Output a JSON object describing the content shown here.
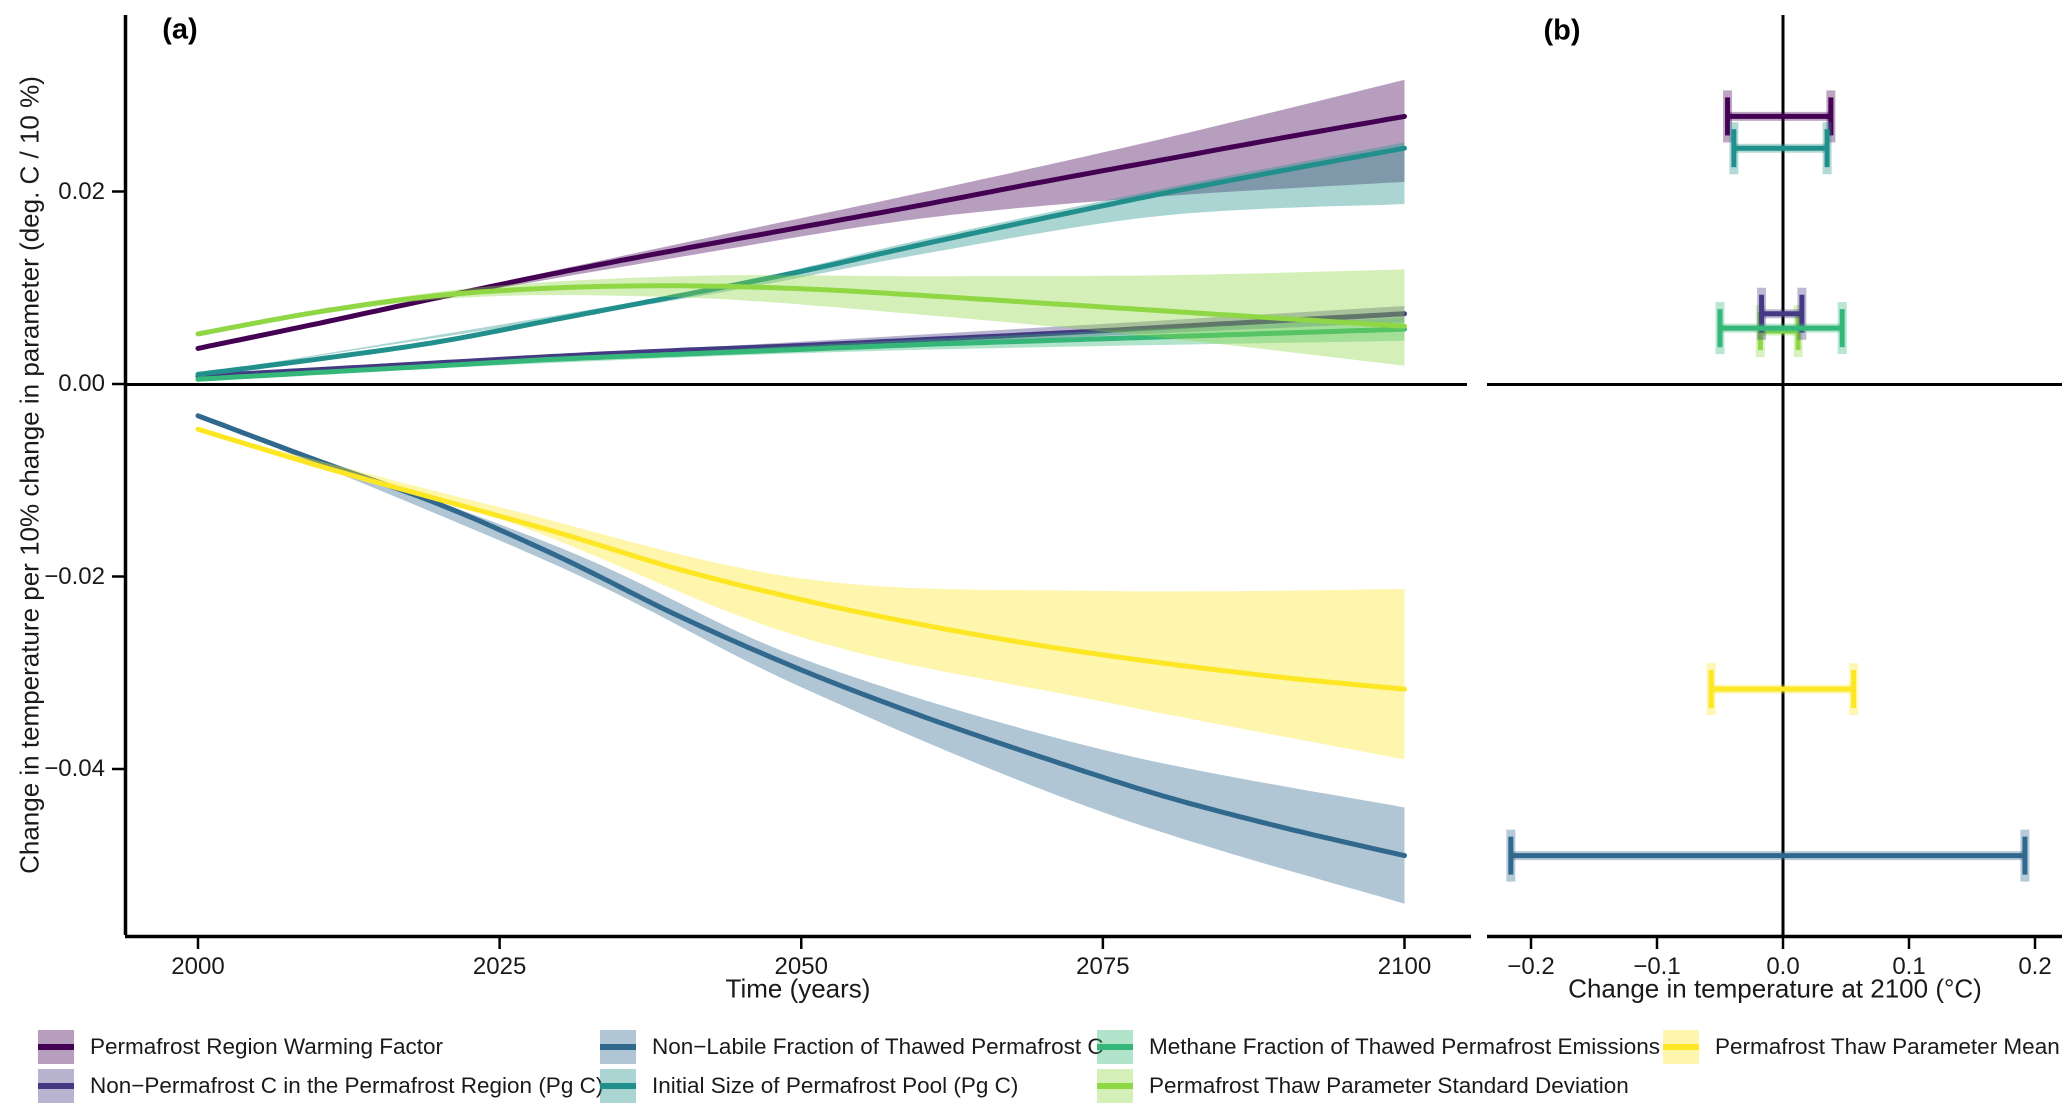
{
  "panel_a": {
    "label": "(a)",
    "x_title": "Time (years)",
    "y_title": "Change in temperature per 10% change in parameter (deg. C / 10 %)",
    "x_ticks": [
      {
        "year": 2000,
        "label": "2000"
      },
      {
        "year": 2025,
        "label": "2025"
      },
      {
        "year": 2050,
        "label": "2050"
      },
      {
        "year": 2075,
        "label": "2075"
      },
      {
        "year": 2100,
        "label": "2100"
      }
    ],
    "y_ticks": [
      {
        "value": 0.02,
        "label": "0.02"
      },
      {
        "value": 0.0,
        "label": "0.00"
      },
      {
        "value": -0.02,
        "label": "−0.02"
      },
      {
        "value": -0.04,
        "label": "−0.04"
      }
    ]
  },
  "panel_b": {
    "label": "(b)",
    "x_title": "Change in temperature at 2100 (°C)",
    "x_ticks": [
      {
        "value": -0.2,
        "label": "−0.2"
      },
      {
        "value": -0.1,
        "label": "−0.1"
      },
      {
        "value": 0.0,
        "label": "0.0"
      },
      {
        "value": 0.1,
        "label": "0.1"
      },
      {
        "value": 0.2,
        "label": "0.2"
      }
    ]
  },
  "legend": {
    "items": [
      {
        "label": "Permafrost Region Warming Factor",
        "color": "#440154",
        "fill_alpha": 0.38
      },
      {
        "label": "Non−Permafrost C in the Permafrost Region (Pg C)",
        "color": "#443A83",
        "fill_alpha": 0.38
      },
      {
        "label": "Non−Labile Fraction of Thawed Permafrost C",
        "color": "#31688E",
        "fill_alpha": 0.38
      },
      {
        "label": "Initial Size of Permafrost Pool (Pg C)",
        "color": "#21908C",
        "fill_alpha": 0.38
      },
      {
        "label": "Methane Fraction of Thawed Permafrost Emissions",
        "color": "#35B779",
        "fill_alpha": 0.38
      },
      {
        "label": "Permafrost Thaw Parameter Standard Deviation",
        "color": "#8FD744",
        "fill_alpha": 0.38
      },
      {
        "label": "Permafrost Thaw Parameter Mean",
        "color": "#FDE725",
        "fill_alpha": 0.38
      }
    ]
  },
  "chart_data": [
    {
      "type": "line",
      "panel": "a",
      "xlabel": "Time (years)",
      "ylabel": "Change in temperature per 10% change in parameter (deg. C / 10 %)",
      "x_range": [
        1994,
        2105
      ],
      "y_range": [
        -0.0573,
        0.0384
      ],
      "x_tick_values": [
        2000,
        2025,
        2050,
        2075,
        2100
      ],
      "y_tick_values": [
        0.02,
        0.0,
        -0.02,
        -0.04
      ],
      "grid": false,
      "series": [
        {
          "name": "Permafrost Region Warming Factor",
          "color": "#440154",
          "x": [
            2000,
            2010,
            2020,
            2030,
            2040,
            2050,
            2060,
            2070,
            2080,
            2090,
            2100
          ],
          "y": [
            0.0037,
            0.0063,
            0.009,
            0.0116,
            0.014,
            0.0163,
            0.0186,
            0.021,
            0.0233,
            0.0256,
            0.0278
          ],
          "ribbon": {
            "x": [
              2000,
              2020,
              2040,
              2060,
              2080,
              2100
            ],
            "lo": [
              0.0037,
              0.0088,
              0.0132,
              0.0172,
              0.0195,
              0.021
            ],
            "hi": [
              0.0037,
              0.0092,
              0.0146,
              0.0199,
              0.0255,
              0.0316
            ]
          }
        },
        {
          "name": "Non−Permafrost C in the Permafrost Region (Pg C)",
          "color": "#443A83",
          "x": [
            2000,
            2010,
            2020,
            2030,
            2040,
            2050,
            2060,
            2070,
            2080,
            2090,
            2100
          ],
          "y": [
            0.0008,
            0.0015,
            0.0022,
            0.0029,
            0.0035,
            0.004,
            0.0046,
            0.0052,
            0.0059,
            0.0066,
            0.0073
          ],
          "ribbon": {
            "x": [
              2000,
              2050,
              2100
            ],
            "lo": [
              0.0008,
              0.0036,
              0.0064
            ],
            "hi": [
              0.0008,
              0.0044,
              0.0081
            ]
          }
        },
        {
          "name": "Non−Labile Fraction of Thawed Permafrost C",
          "color": "#31688E",
          "x": [
            2000,
            2010,
            2020,
            2030,
            2040,
            2050,
            2060,
            2070,
            2080,
            2090,
            2100
          ],
          "y": [
            -0.0033,
            -0.008,
            -0.0125,
            -0.018,
            -0.0242,
            -0.0297,
            -0.0345,
            -0.0388,
            -0.0428,
            -0.0461,
            -0.049
          ],
          "ribbon": {
            "x": [
              2000,
              2030,
              2050,
              2075,
              2100
            ],
            "lo": [
              -0.0033,
              -0.019,
              -0.0315,
              -0.0445,
              -0.054
            ],
            "hi": [
              -0.0033,
              -0.017,
              -0.0285,
              -0.038,
              -0.044
            ]
          }
        },
        {
          "name": "Initial Size of Permafrost Pool (Pg C)",
          "color": "#21908C",
          "x": [
            2000,
            2010,
            2020,
            2030,
            2040,
            2050,
            2060,
            2070,
            2080,
            2090,
            2100
          ],
          "y": [
            0.001,
            0.0026,
            0.0044,
            0.0068,
            0.0092,
            0.0117,
            0.0145,
            0.0172,
            0.0198,
            0.0222,
            0.0245
          ],
          "ribbon": {
            "x": [
              2000,
              2040,
              2060,
              2080,
              2100
            ],
            "lo": [
              0.001,
              0.0088,
              0.0135,
              0.0175,
              0.0187
            ],
            "hi": [
              0.001,
              0.0094,
              0.015,
              0.0203,
              0.0251
            ]
          }
        },
        {
          "name": "Methane Fraction of Thawed Permafrost Emissions",
          "color": "#35B779",
          "x": [
            2000,
            2010,
            2020,
            2030,
            2040,
            2050,
            2060,
            2070,
            2080,
            2090,
            2100
          ],
          "y": [
            0.0005,
            0.0012,
            0.0019,
            0.0026,
            0.0031,
            0.0036,
            0.0041,
            0.0045,
            0.0049,
            0.0053,
            0.0057
          ],
          "ribbon": {
            "x": [
              2000,
              2050,
              2100
            ],
            "lo": [
              0.0005,
              0.0032,
              0.0045
            ],
            "hi": [
              0.0005,
              0.004,
              0.0069
            ]
          }
        },
        {
          "name": "Permafrost Thaw Parameter Standard Deviation",
          "color": "#8FD744",
          "x": [
            2000,
            2010,
            2020,
            2030,
            2040,
            2050,
            2060,
            2070,
            2080,
            2090,
            2100
          ],
          "y": [
            0.0052,
            0.0075,
            0.0092,
            0.01,
            0.0102,
            0.0099,
            0.0092,
            0.0084,
            0.0076,
            0.0068,
            0.006
          ],
          "ribbon": {
            "x": [
              2000,
              2020,
              2040,
              2060,
              2080,
              2100
            ],
            "lo": [
              0.0052,
              0.0088,
              0.009,
              0.0072,
              0.0048,
              0.0019
            ],
            "hi": [
              0.0052,
              0.0096,
              0.0112,
              0.0112,
              0.0113,
              0.0119
            ]
          }
        },
        {
          "name": "Permafrost Thaw Parameter Mean",
          "color": "#FDE725",
          "x": [
            2000,
            2010,
            2020,
            2030,
            2040,
            2050,
            2060,
            2070,
            2080,
            2090,
            2100
          ],
          "y": [
            -0.0047,
            -0.0085,
            -0.012,
            -0.0155,
            -0.0193,
            -0.0224,
            -0.025,
            -0.0272,
            -0.029,
            -0.0305,
            -0.0317
          ],
          "ribbon": {
            "x": [
              2000,
              2025,
              2050,
              2075,
              2100
            ],
            "lo": [
              -0.0047,
              -0.014,
              -0.0263,
              -0.033,
              -0.039
            ],
            "hi": [
              -0.0047,
              -0.0128,
              -0.0202,
              -0.0215,
              -0.0213
            ]
          }
        }
      ]
    },
    {
      "type": "errorbar",
      "panel": "b",
      "xlabel": "Change in temperature at 2100 (°C)",
      "x_range": [
        -0.235,
        0.221
      ],
      "x_tick_values": [
        -0.2,
        -0.1,
        0.0,
        0.1,
        0.2
      ],
      "y_axis_shared_with": "panel a",
      "bars": [
        {
          "name": "Permafrost Region Warming Factor",
          "color": "#440154",
          "y": 0.0278,
          "xmin": -0.044,
          "xmax": 0.038
        },
        {
          "name": "Initial Size of Permafrost Pool (Pg C)",
          "color": "#21908C",
          "y": 0.0245,
          "xmin": -0.039,
          "xmax": 0.035
        },
        {
          "name": "Permafrost Thaw Parameter Standard Deviation",
          "color": "#8FD744",
          "y": 0.0055,
          "xmin": -0.018,
          "xmax": 0.012
        },
        {
          "name": "Non−Permafrost C in the Permafrost Region (Pg C)",
          "color": "#443A83",
          "y": 0.0073,
          "xmin": -0.017,
          "xmax": 0.015
        },
        {
          "name": "Methane Fraction of Thawed Permafrost Emissions",
          "color": "#35B779",
          "y": 0.0058,
          "xmin": -0.05,
          "xmax": 0.047
        },
        {
          "name": "Permafrost Thaw Parameter Mean",
          "color": "#FDE725",
          "y": -0.0317,
          "xmin": -0.057,
          "xmax": 0.056
        },
        {
          "name": "Non−Labile Fraction of Thawed Permafrost C",
          "color": "#31688E",
          "y": -0.049,
          "xmin": -0.216,
          "xmax": 0.192
        }
      ]
    }
  ]
}
